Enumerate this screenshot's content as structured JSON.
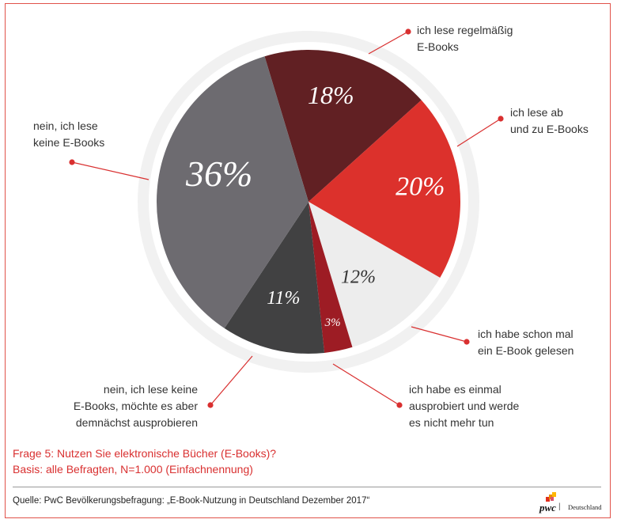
{
  "chart_data": {
    "type": "pie",
    "title": "",
    "slices": [
      {
        "label": "ich lese regelmäßig E-Books",
        "value": 18,
        "value_label": "18%",
        "color": "#612023",
        "text_color": "#ffffff"
      },
      {
        "label": "ich lese ab und zu E-Books",
        "value": 20,
        "value_label": "20%",
        "color": "#dc312c",
        "text_color": "#ffffff"
      },
      {
        "label": "ich habe schon mal ein E-Book gelesen",
        "value": 12,
        "value_label": "12%",
        "color": "#ededed",
        "text_color": "#333333"
      },
      {
        "label": "ich habe es einmal ausprobiert und werde es nicht mehr tun",
        "value": 3,
        "value_label": "3%",
        "color": "#9d1c24",
        "text_color": "#ffffff"
      },
      {
        "label": "nein, ich lese keine E-Books, möchte es aber demnächst ausprobieren",
        "value": 11,
        "value_label": "11%",
        "color": "#414142",
        "text_color": "#ffffff"
      },
      {
        "label": "nein, ich lese keine E-Books",
        "value": 36,
        "value_label": "36%",
        "color": "#6d6b70",
        "text_color": "#ffffff"
      }
    ]
  },
  "labels": {
    "l0": [
      "ich lese regelmäßig",
      "E-Books"
    ],
    "l1": [
      "ich lese ab",
      "und zu E-Books"
    ],
    "l2": [
      "ich habe schon mal",
      "ein E-Book gelesen"
    ],
    "l3": [
      "ich habe es einmal",
      "ausprobiert und werde",
      "es nicht mehr tun"
    ],
    "l4": [
      "nein, ich lese keine",
      "E-Books, möchte es aber",
      "demnächst ausprobieren"
    ],
    "l5": [
      "nein, ich lese",
      "keine E-Books"
    ]
  },
  "question": {
    "line1": "Frage 5: Nutzen Sie elektronische Bücher (E-Books)?",
    "line2": "Basis: alle Befragten, N=1.000 (Einfachnennung)"
  },
  "source": "Quelle: PwC Bevölkerungsbefragung: „E-Book-Nutzung in Deutschland Dezember 2017“",
  "logo": {
    "mark": "pwc",
    "separator": "|",
    "text": "Deutschland"
  },
  "colors": {
    "accent": "#d93030",
    "ring": "#f1f1f1"
  }
}
